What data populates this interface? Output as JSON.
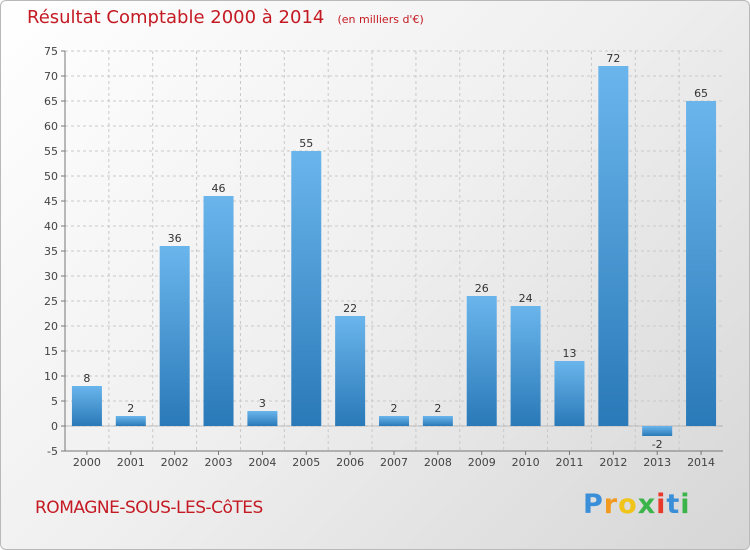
{
  "header": {
    "title": "Résultat Comptable 2000 à 2014",
    "subtitle": "(en milliers d'€)"
  },
  "footer": {
    "commune": "ROMAGNE-SOUS-LES-CôTES",
    "logo_letters": [
      "P",
      "r",
      "o",
      "x",
      "i",
      "t",
      "i"
    ],
    "logo_colors": [
      "#3a8fd8",
      "#f29a1f",
      "#f0c419",
      "#3bb54a",
      "#e8392a",
      "#3a8fd8",
      "#3bb54a"
    ]
  },
  "colors": {
    "bar_light": "#6ab5ec",
    "bar_dark": "#2a79b8",
    "title": "#c41a23",
    "grid": "#c9c9c9"
  },
  "chart_data": {
    "type": "bar",
    "title": "Résultat Comptable 2000 à 2014",
    "subtitle": "(en milliers d'€)",
    "categories": [
      "2000",
      "2001",
      "2002",
      "2003",
      "2004",
      "2005",
      "2006",
      "2007",
      "2008",
      "2009",
      "2010",
      "2011",
      "2012",
      "2013",
      "2014"
    ],
    "values": [
      8,
      2,
      36,
      46,
      3,
      55,
      22,
      2,
      2,
      26,
      24,
      13,
      72,
      -2,
      65
    ],
    "data_labels": [
      "8",
      "2",
      "36",
      "46",
      "3",
      "55",
      "22",
      "2",
      "2",
      "26",
      "24",
      "13",
      "72",
      "-2",
      "65"
    ],
    "ylim": [
      -5,
      75
    ],
    "yticks": [
      -5,
      0,
      5,
      10,
      15,
      20,
      25,
      30,
      35,
      40,
      45,
      50,
      55,
      60,
      65,
      70,
      75
    ],
    "ytick_labels": [
      "-5",
      "0",
      "5",
      "10",
      "15",
      "20",
      "25",
      "30",
      "35",
      "40",
      "45",
      "50",
      "55",
      "60",
      "65",
      "70",
      "75"
    ],
    "grid": true
  }
}
